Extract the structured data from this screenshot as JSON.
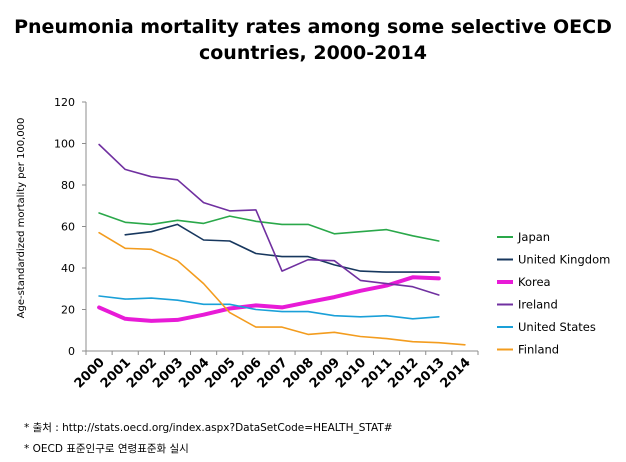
{
  "chart_data": {
    "type": "line",
    "title": "Pneumonia mortality rates among some selective OECD",
    "title_line2": "countries, 2000-2014",
    "ylabel": "Age-standardized mortality per 100,000",
    "xlabel": "",
    "ylim": [
      0,
      120
    ],
    "yticks": [
      "0",
      "20",
      "40",
      "60",
      "80",
      "100",
      "120"
    ],
    "x": [
      "2000",
      "2001",
      "2002",
      "2003",
      "2004",
      "2005",
      "2006",
      "2007",
      "2008",
      "2009",
      "2010",
      "2011",
      "2012",
      "2013",
      "2014"
    ],
    "grid": false,
    "legend_position": "right",
    "series": [
      {
        "name": "Japan",
        "color": "#2aa84a",
        "width": 1.6,
        "values": [
          66.5,
          62,
          61,
          63,
          61.5,
          65,
          62.5,
          61,
          61,
          56.5,
          57.5,
          58.5,
          55.5,
          53,
          null
        ]
      },
      {
        "name": "United Kingdom",
        "color": "#17375e",
        "width": 1.6,
        "values": [
          null,
          56,
          57.5,
          61,
          53.5,
          53,
          47,
          45.5,
          45.5,
          41.5,
          38.5,
          38,
          38,
          38,
          null
        ]
      },
      {
        "name": "Korea",
        "color": "#e81bd7",
        "width": 4,
        "values": [
          21,
          15.5,
          14.5,
          15,
          17.5,
          20.5,
          22,
          21,
          23.5,
          26,
          29,
          31.5,
          35.5,
          35,
          null
        ]
      },
      {
        "name": "Ireland",
        "color": "#7030a0",
        "width": 1.6,
        "values": [
          99.5,
          87.5,
          84,
          82.5,
          71.5,
          67.5,
          68,
          38.5,
          44,
          43.5,
          34,
          32.5,
          31,
          27,
          null
        ]
      },
      {
        "name": "United States",
        "color": "#1aa0d8",
        "width": 1.6,
        "values": [
          26.5,
          25,
          25.5,
          24.5,
          22.5,
          22.5,
          20,
          19,
          19,
          17,
          16.5,
          17,
          15.5,
          16.5,
          null
        ]
      },
      {
        "name": "Finland",
        "color": "#f39c1e",
        "width": 1.6,
        "values": [
          57,
          49.5,
          49,
          43.5,
          32.5,
          18.5,
          11.5,
          11.5,
          8,
          9,
          7,
          6,
          4.5,
          4,
          3
        ]
      }
    ]
  },
  "notes": {
    "source": "* 출처 : http://stats.oecd.org/index.aspx?DataSetCode=HEALTH_STAT#",
    "method": "* OECD 표준인구로 연령표준화 실시"
  }
}
